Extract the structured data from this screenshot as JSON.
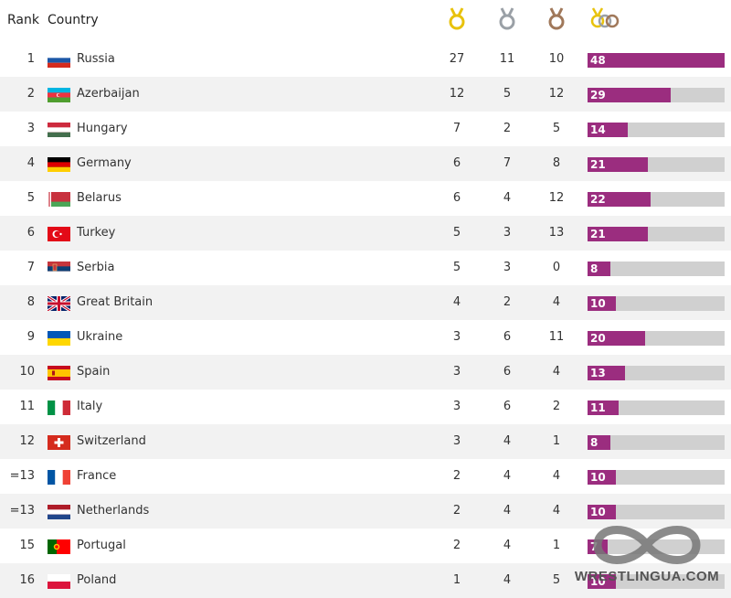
{
  "header": {
    "rank_label": "Rank",
    "country_label": "Country",
    "icons": [
      "gold-medal-icon",
      "silver-medal-icon",
      "bronze-medal-icon",
      "total-medals-icon"
    ]
  },
  "colors": {
    "bar_fill": "#9b2d7f",
    "bar_track": "#d0d0d0",
    "gold": "#e8c20c",
    "silver": "#9aa0a6",
    "bronze": "#a0785a"
  },
  "rows": [
    {
      "rank": "1",
      "country": "Russia",
      "gold": "27",
      "silver": "11",
      "bronze": "10",
      "total": "48",
      "flag": "russia-flag-icon"
    },
    {
      "rank": "2",
      "country": "Azerbaijan",
      "gold": "12",
      "silver": "5",
      "bronze": "12",
      "total": "29",
      "flag": "azerbaijan-flag-icon"
    },
    {
      "rank": "3",
      "country": "Hungary",
      "gold": "7",
      "silver": "2",
      "bronze": "5",
      "total": "14",
      "flag": "hungary-flag-icon"
    },
    {
      "rank": "4",
      "country": "Germany",
      "gold": "6",
      "silver": "7",
      "bronze": "8",
      "total": "21",
      "flag": "germany-flag-icon"
    },
    {
      "rank": "5",
      "country": "Belarus",
      "gold": "6",
      "silver": "4",
      "bronze": "12",
      "total": "22",
      "flag": "belarus-flag-icon"
    },
    {
      "rank": "6",
      "country": "Turkey",
      "gold": "5",
      "silver": "3",
      "bronze": "13",
      "total": "21",
      "flag": "turkey-flag-icon"
    },
    {
      "rank": "7",
      "country": "Serbia",
      "gold": "5",
      "silver": "3",
      "bronze": "0",
      "total": "8",
      "flag": "serbia-flag-icon"
    },
    {
      "rank": "8",
      "country": "Great Britain",
      "gold": "4",
      "silver": "2",
      "bronze": "4",
      "total": "10",
      "flag": "great-britain-flag-icon"
    },
    {
      "rank": "9",
      "country": "Ukraine",
      "gold": "3",
      "silver": "6",
      "bronze": "11",
      "total": "20",
      "flag": "ukraine-flag-icon"
    },
    {
      "rank": "10",
      "country": "Spain",
      "gold": "3",
      "silver": "6",
      "bronze": "4",
      "total": "13",
      "flag": "spain-flag-icon"
    },
    {
      "rank": "11",
      "country": "Italy",
      "gold": "3",
      "silver": "6",
      "bronze": "2",
      "total": "11",
      "flag": "italy-flag-icon"
    },
    {
      "rank": "12",
      "country": "Switzerland",
      "gold": "3",
      "silver": "4",
      "bronze": "1",
      "total": "8",
      "flag": "switzerland-flag-icon"
    },
    {
      "rank": "=13",
      "country": "France",
      "gold": "2",
      "silver": "4",
      "bronze": "4",
      "total": "10",
      "flag": "france-flag-icon"
    },
    {
      "rank": "=13",
      "country": "Netherlands",
      "gold": "2",
      "silver": "4",
      "bronze": "4",
      "total": "10",
      "flag": "netherlands-flag-icon"
    },
    {
      "rank": "15",
      "country": "Portugal",
      "gold": "2",
      "silver": "4",
      "bronze": "1",
      "total": "7",
      "flag": "portugal-flag-icon"
    },
    {
      "rank": "16",
      "country": "Poland",
      "gold": "1",
      "silver": "4",
      "bronze": "5",
      "total": "10",
      "flag": "poland-flag-icon"
    }
  ],
  "bar_max_total": 48,
  "watermark": {
    "text": "WRESTLINGUA.COM",
    "icon": "infinity-logo-icon"
  }
}
